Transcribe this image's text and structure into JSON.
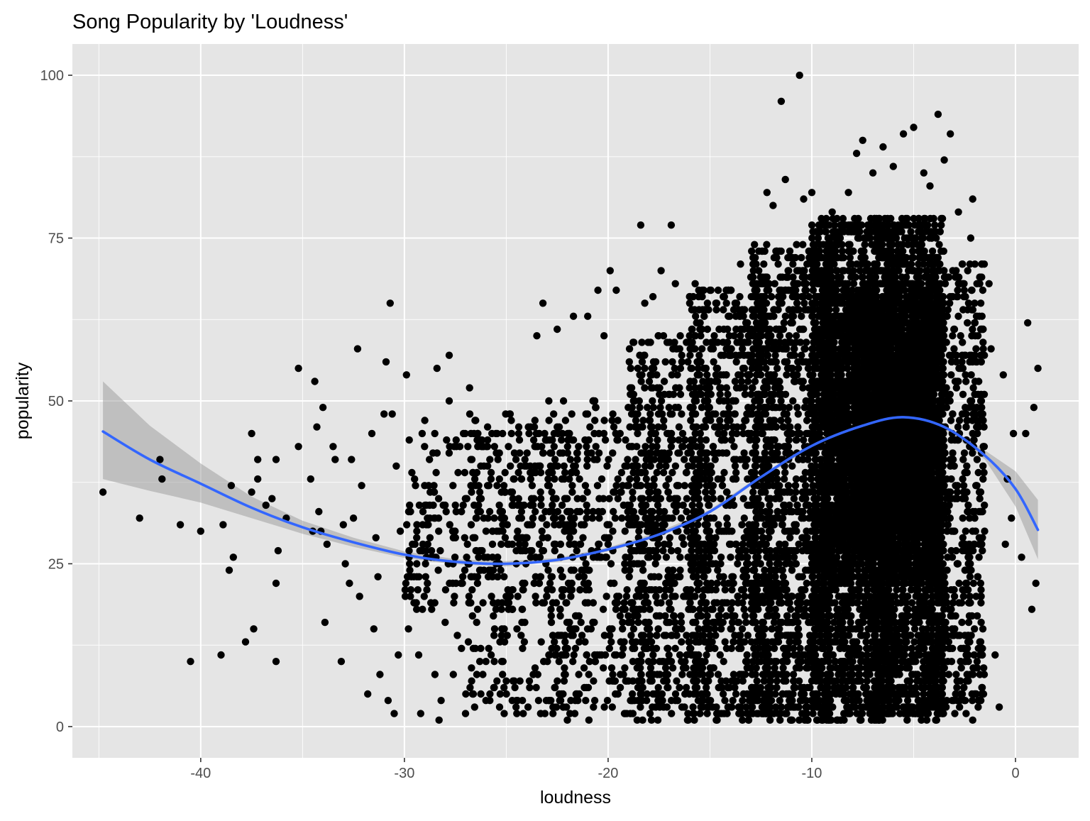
{
  "chart_data": {
    "type": "scatter",
    "title": "Song Popularity by 'Loudness'",
    "xlabel": "loudness",
    "ylabel": "popularity",
    "xlim": [
      -46.3,
      3.1
    ],
    "ylim": [
      -4.8,
      104.8
    ],
    "x_ticks": [
      -40,
      -30,
      -20,
      -10,
      0
    ],
    "y_ticks": [
      0,
      25,
      50,
      75,
      100
    ],
    "x_tick_labels": [
      "-40",
      "-30",
      "-20",
      "-10",
      "0"
    ],
    "y_tick_labels": [
      "0",
      "25",
      "50",
      "75",
      "100"
    ],
    "grid": true,
    "legend": "none",
    "colors": {
      "panel_background": "#e5e5e5",
      "grid": "#ffffff",
      "points": "#000000",
      "smooth_line": "#3366ff",
      "confidence_band": "#999999"
    },
    "outlier_points": [
      {
        "x": -44.8,
        "y": 36
      },
      {
        "x": -43.0,
        "y": 32
      },
      {
        "x": -42.0,
        "y": 41
      },
      {
        "x": -41.9,
        "y": 38
      },
      {
        "x": -41.0,
        "y": 31
      },
      {
        "x": -40.5,
        "y": 10
      },
      {
        "x": -40.0,
        "y": 30
      },
      {
        "x": -39.0,
        "y": 11
      },
      {
        "x": -38.9,
        "y": 31
      },
      {
        "x": -38.5,
        "y": 37
      },
      {
        "x": -38.6,
        "y": 24
      },
      {
        "x": -38.4,
        "y": 26
      },
      {
        "x": -37.8,
        "y": 13
      },
      {
        "x": -37.5,
        "y": 45
      },
      {
        "x": -37.5,
        "y": 36
      },
      {
        "x": -37.4,
        "y": 15
      },
      {
        "x": -37.2,
        "y": 41
      },
      {
        "x": -37.2,
        "y": 38
      },
      {
        "x": -36.8,
        "y": 34
      },
      {
        "x": -36.5,
        "y": 35
      },
      {
        "x": -36.3,
        "y": 41
      },
      {
        "x": -36.3,
        "y": 22
      },
      {
        "x": -36.2,
        "y": 27
      },
      {
        "x": -36.3,
        "y": 10
      },
      {
        "x": -35.8,
        "y": 32
      },
      {
        "x": -35.2,
        "y": 55
      },
      {
        "x": -35.2,
        "y": 43
      },
      {
        "x": -34.6,
        "y": 38
      },
      {
        "x": -34.5,
        "y": 30
      },
      {
        "x": -34.4,
        "y": 53
      },
      {
        "x": -34.3,
        "y": 46
      },
      {
        "x": -34.2,
        "y": 33
      },
      {
        "x": -34.1,
        "y": 30
      },
      {
        "x": -34.0,
        "y": 49
      },
      {
        "x": -33.9,
        "y": 16
      },
      {
        "x": -33.8,
        "y": 28
      },
      {
        "x": -33.5,
        "y": 43
      },
      {
        "x": -33.4,
        "y": 41
      },
      {
        "x": -33.1,
        "y": 10
      },
      {
        "x": -33.0,
        "y": 31
      },
      {
        "x": -32.9,
        "y": 25
      },
      {
        "x": -32.7,
        "y": 22
      },
      {
        "x": -32.6,
        "y": 41
      },
      {
        "x": -32.5,
        "y": 32
      },
      {
        "x": -32.3,
        "y": 58
      },
      {
        "x": -32.2,
        "y": 20
      },
      {
        "x": -32.1,
        "y": 37
      },
      {
        "x": -31.8,
        "y": 5
      },
      {
        "x": -31.6,
        "y": 45
      },
      {
        "x": -31.5,
        "y": 15
      },
      {
        "x": -31.4,
        "y": 29
      },
      {
        "x": -31.3,
        "y": 23
      },
      {
        "x": -31.2,
        "y": 8
      },
      {
        "x": -31.0,
        "y": 48
      },
      {
        "x": -30.9,
        "y": 56
      },
      {
        "x": -30.8,
        "y": 4
      },
      {
        "x": -30.7,
        "y": 65
      },
      {
        "x": -30.6,
        "y": 48
      },
      {
        "x": -30.5,
        "y": 2
      },
      {
        "x": -30.4,
        "y": 40
      },
      {
        "x": -30.3,
        "y": 11
      },
      {
        "x": -30.2,
        "y": 30
      },
      {
        "x": -29.9,
        "y": 54
      },
      {
        "x": -29.8,
        "y": 15
      },
      {
        "x": -29.5,
        "y": 38
      },
      {
        "x": -29.4,
        "y": 18
      },
      {
        "x": -29.3,
        "y": 11
      },
      {
        "x": -29.2,
        "y": 2
      },
      {
        "x": -29.0,
        "y": 47
      },
      {
        "x": -28.9,
        "y": 21
      },
      {
        "x": -28.6,
        "y": 42
      },
      {
        "x": -28.5,
        "y": 8
      },
      {
        "x": -28.4,
        "y": 55
      },
      {
        "x": -28.3,
        "y": 1
      },
      {
        "x": -28.2,
        "y": 4
      },
      {
        "x": -28.0,
        "y": 16
      },
      {
        "x": -27.8,
        "y": 57
      },
      {
        "x": -27.8,
        "y": 50
      },
      {
        "x": -27.6,
        "y": 8
      },
      {
        "x": -27.4,
        "y": 14
      },
      {
        "x": -27.2,
        "y": 12
      },
      {
        "x": -27.0,
        "y": 2
      },
      {
        "x": -26.8,
        "y": 52
      },
      {
        "x": -26.7,
        "y": 7
      },
      {
        "x": -26.5,
        "y": 47
      },
      {
        "x": -26.3,
        "y": 10
      },
      {
        "x": -26.0,
        "y": 4
      },
      {
        "x": -25.8,
        "y": 5
      },
      {
        "x": -25.6,
        "y": 14
      },
      {
        "x": -25.0,
        "y": 7
      },
      {
        "x": -24.5,
        "y": 4
      },
      {
        "x": -24.2,
        "y": 12
      },
      {
        "x": -23.5,
        "y": 60
      },
      {
        "x": -23.2,
        "y": 65
      },
      {
        "x": -23.1,
        "y": 2
      },
      {
        "x": -22.5,
        "y": 61
      },
      {
        "x": -22.0,
        "y": 1
      },
      {
        "x": -21.7,
        "y": 63
      },
      {
        "x": -21.0,
        "y": 63
      },
      {
        "x": -20.5,
        "y": 67
      },
      {
        "x": -20.2,
        "y": 60
      },
      {
        "x": -19.9,
        "y": 70
      },
      {
        "x": -19.6,
        "y": 67
      },
      {
        "x": -18.4,
        "y": 77
      },
      {
        "x": -18.2,
        "y": 65
      },
      {
        "x": -17.8,
        "y": 66
      },
      {
        "x": -17.4,
        "y": 70
      },
      {
        "x": -16.9,
        "y": 77
      },
      {
        "x": -16.7,
        "y": 68
      },
      {
        "x": -16.0,
        "y": 66
      },
      {
        "x": -15.0,
        "y": 67
      },
      {
        "x": -14.2,
        "y": 67
      },
      {
        "x": -13.5,
        "y": 71
      },
      {
        "x": -12.6,
        "y": 73
      },
      {
        "x": -12.2,
        "y": 82
      },
      {
        "x": -11.9,
        "y": 80
      },
      {
        "x": -11.5,
        "y": 96
      },
      {
        "x": -11.3,
        "y": 84
      },
      {
        "x": -10.6,
        "y": 100
      },
      {
        "x": -10.4,
        "y": 81
      },
      {
        "x": -10.0,
        "y": 82
      },
      {
        "x": -9.0,
        "y": 79
      },
      {
        "x": -8.2,
        "y": 82
      },
      {
        "x": -7.8,
        "y": 88
      },
      {
        "x": -7.5,
        "y": 90
      },
      {
        "x": -7.0,
        "y": 85
      },
      {
        "x": -6.5,
        "y": 89
      },
      {
        "x": -6.0,
        "y": 86
      },
      {
        "x": -5.5,
        "y": 91
      },
      {
        "x": -5.0,
        "y": 92
      },
      {
        "x": -4.5,
        "y": 85
      },
      {
        "x": -4.2,
        "y": 83
      },
      {
        "x": -3.8,
        "y": 94
      },
      {
        "x": -3.5,
        "y": 87
      },
      {
        "x": -3.2,
        "y": 91
      },
      {
        "x": -2.8,
        "y": 79
      },
      {
        "x": -2.1,
        "y": 81
      },
      {
        "x": -2.2,
        "y": 75
      },
      {
        "x": -2.1,
        "y": 1
      },
      {
        "x": -1.7,
        "y": 4
      },
      {
        "x": -1.3,
        "y": 68
      },
      {
        "x": -1.2,
        "y": 58
      },
      {
        "x": -1.0,
        "y": 11
      },
      {
        "x": -0.8,
        "y": 3
      },
      {
        "x": -0.6,
        "y": 54
      },
      {
        "x": -0.5,
        "y": 28
      },
      {
        "x": -0.4,
        "y": 38
      },
      {
        "x": -0.2,
        "y": 32
      },
      {
        "x": -0.1,
        "y": 45
      },
      {
        "x": 0.3,
        "y": 26
      },
      {
        "x": 0.5,
        "y": 45
      },
      {
        "x": 0.6,
        "y": 62
      },
      {
        "x": 0.8,
        "y": 18
      },
      {
        "x": 0.9,
        "y": 49
      },
      {
        "x": 1.0,
        "y": 22
      },
      {
        "x": 1.1,
        "y": 55
      }
    ],
    "density_regions": [
      {
        "x_range": [
          -30,
          -23
        ],
        "y_range": [
          18,
          45
        ],
        "count": 260
      },
      {
        "x_range": [
          -27,
          -21
        ],
        "y_range": [
          2,
          48
        ],
        "count": 300
      },
      {
        "x_range": [
          -23,
          -17
        ],
        "y_range": [
          1,
          50
        ],
        "count": 500
      },
      {
        "x_range": [
          -19,
          -15
        ],
        "y_range": [
          1,
          60
        ],
        "count": 520
      },
      {
        "x_range": [
          -16,
          -12
        ],
        "y_range": [
          1,
          68
        ],
        "count": 800
      },
      {
        "x_range": [
          -13,
          -9
        ],
        "y_range": [
          1,
          74
        ],
        "count": 1300
      },
      {
        "x_range": [
          -10,
          -6
        ],
        "y_range": [
          1,
          78
        ],
        "count": 2000
      },
      {
        "x_range": [
          -7,
          -3.5
        ],
        "y_range": [
          1,
          78
        ],
        "count": 2000
      },
      {
        "x_range": [
          -4.5,
          -1.5
        ],
        "y_range": [
          2,
          72
        ],
        "count": 700
      },
      {
        "x_range": [
          -9.5,
          -3.5
        ],
        "y_range": [
          22,
          66
        ],
        "count": 2600
      },
      {
        "x_range": [
          -8,
          -4
        ],
        "y_range": [
          30,
          60
        ],
        "count": 1500
      }
    ],
    "series": [
      {
        "type": "smooth",
        "x": [
          -44.8,
          -42.5,
          -40.0,
          -37.5,
          -35.0,
          -32.5,
          -30.0,
          -27.5,
          -25.0,
          -22.5,
          -20.0,
          -17.5,
          -15.0,
          -12.5,
          -10.0,
          -7.5,
          -5.5,
          -3.5,
          -1.5,
          0.0,
          1.1
        ],
        "y": [
          45.3,
          41.0,
          37.3,
          33.6,
          30.6,
          28.3,
          26.4,
          25.3,
          25.0,
          25.6,
          27.2,
          29.5,
          33.0,
          38.3,
          43.1,
          46.2,
          47.5,
          46.0,
          41.6,
          36.5,
          30.2
        ],
        "lower": [
          38.0,
          36.2,
          34.4,
          32.0,
          29.6,
          27.6,
          25.9,
          24.9,
          24.6,
          25.3,
          26.9,
          29.1,
          32.7,
          38.0,
          42.9,
          46.0,
          47.3,
          45.7,
          41.0,
          33.8,
          25.7
        ],
        "upper": [
          53.0,
          46.2,
          40.4,
          35.3,
          31.6,
          29.0,
          26.9,
          25.7,
          25.4,
          25.9,
          27.5,
          29.9,
          33.3,
          38.6,
          43.3,
          46.4,
          47.7,
          46.3,
          42.4,
          39.2,
          34.8
        ]
      }
    ]
  }
}
